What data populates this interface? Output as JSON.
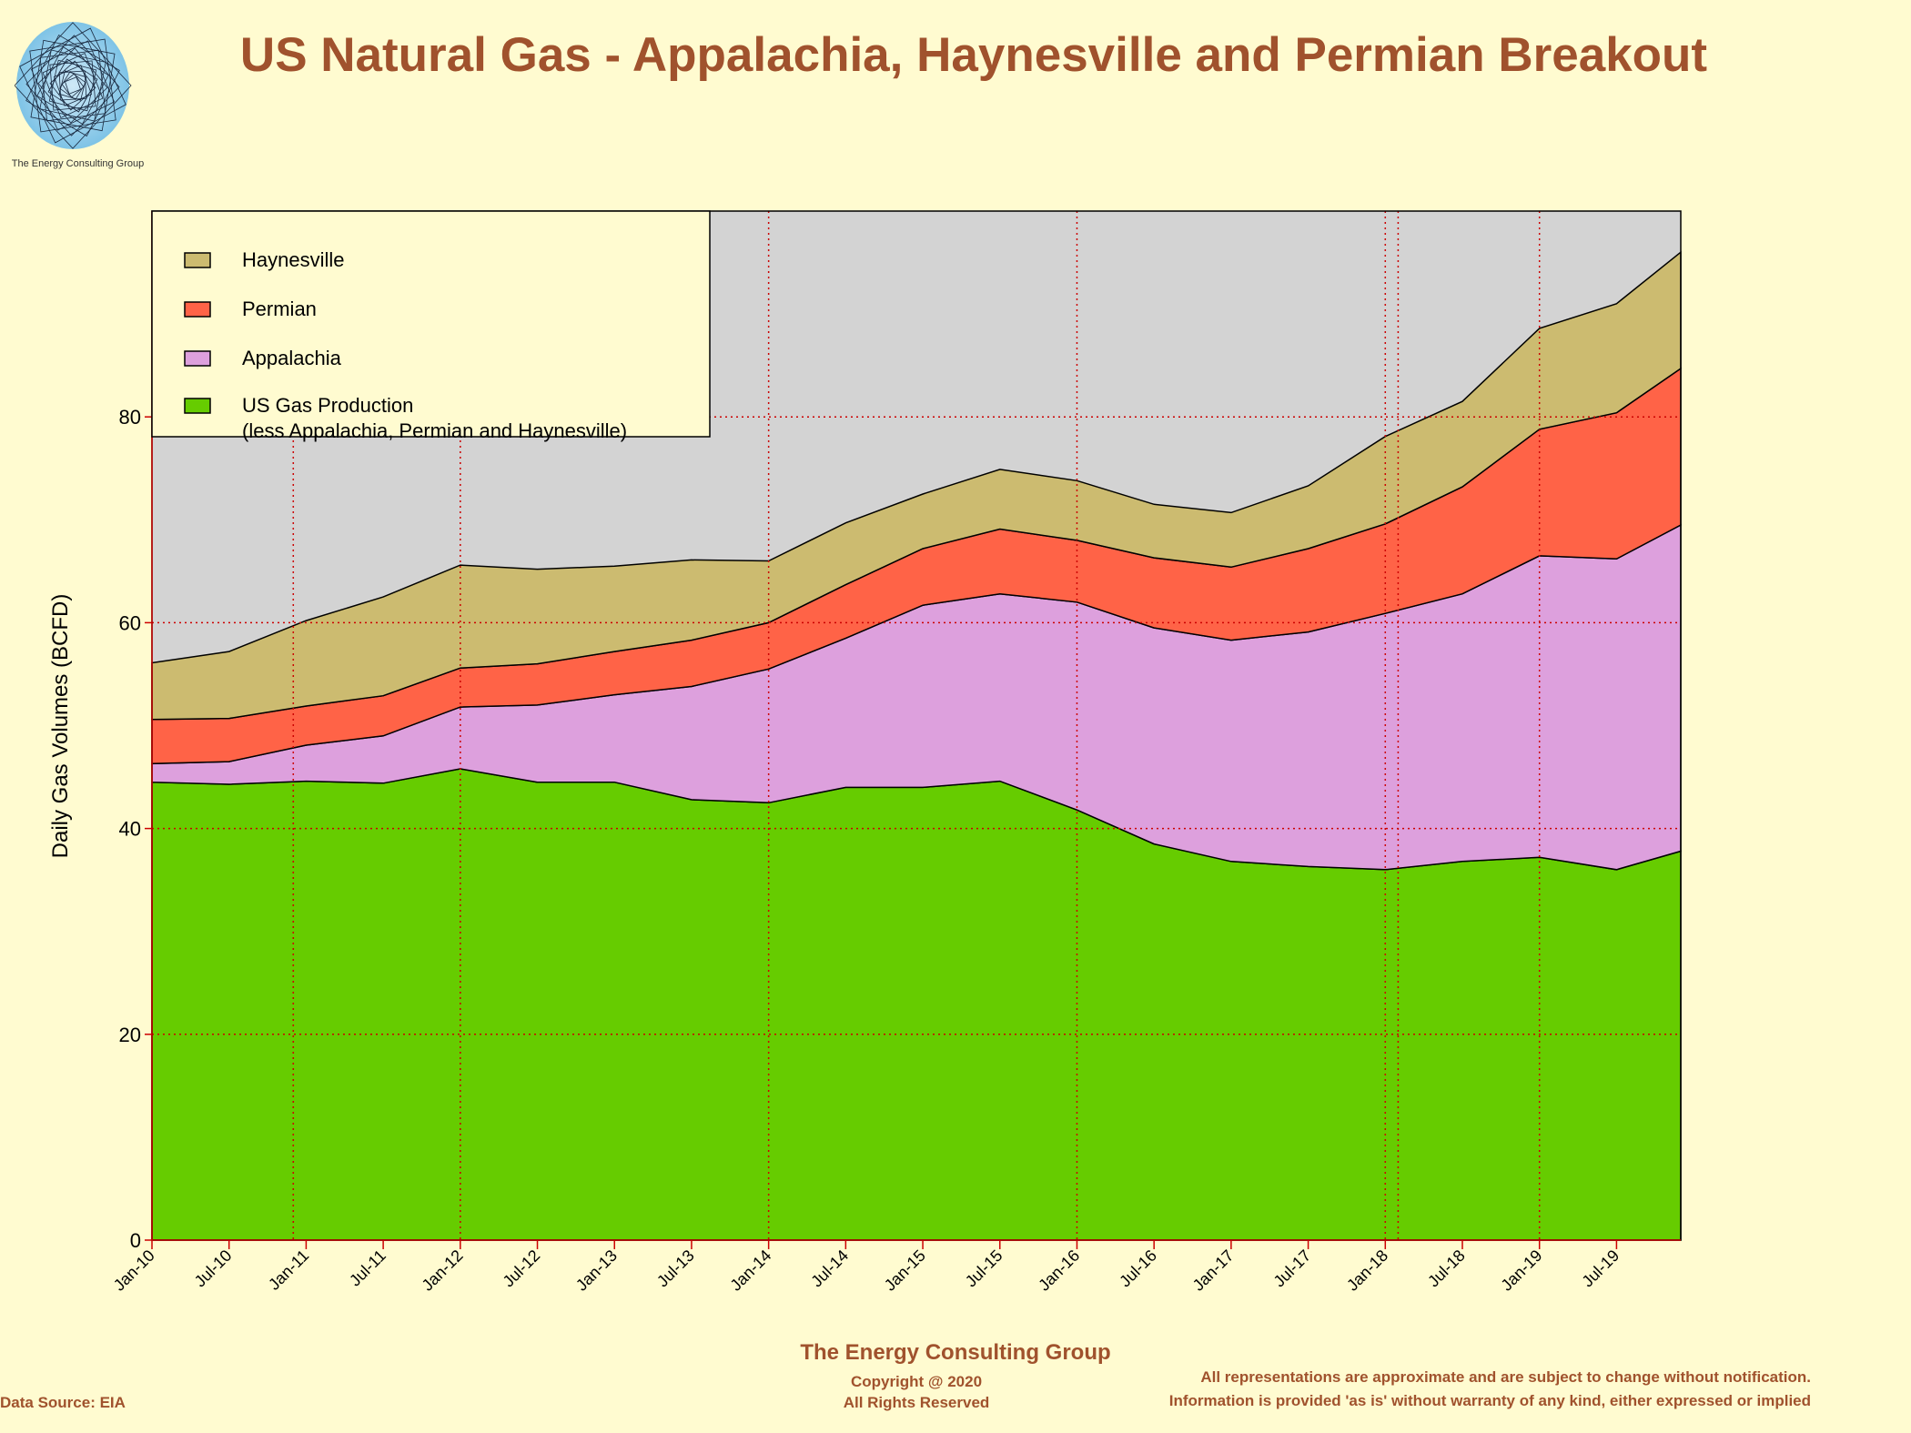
{
  "title": "US Natural Gas - Appalachia, Haynesville and Permian Breakout",
  "logo_text": "The Energy Consulting Group",
  "footer": {
    "org": "The Energy Consulting Group",
    "copyright": "Copyright @ 2020",
    "rights": "All Rights Reserved",
    "source": "Data Source: EIA",
    "disclaimer1": "All representations are approximate and are subject to change without notification.",
    "disclaimer2": "Information is provided 'as is' without warranty of any kind, either expressed or implied"
  },
  "colors": {
    "background": "#FFFBD0",
    "plot_background": "#D3D3D3",
    "grid": "#CC0000",
    "US Gas Production": "#66CC00",
    "Appalachia": "#DDA0DD",
    "Permian": "#FF6347",
    "Haynesville": "#CCBB70",
    "accent": "#A0522D"
  },
  "chart_data": {
    "type": "area",
    "stacked": true,
    "ylabel": "Daily Gas Volumes (BCFD)",
    "xlabel": "",
    "ylim": [
      0,
      100
    ],
    "yticks": [
      0,
      20,
      40,
      60,
      80
    ],
    "x_start": "Jan-10",
    "x_end": "Dec-19",
    "x_tick_labels": [
      "Jan-10",
      "Jul-10",
      "Jan-11",
      "Jul-11",
      "Jan-12",
      "Jul-12",
      "Jan-13",
      "Jul-13",
      "Jan-14",
      "Jul-14",
      "Jan-15",
      "Jul-15",
      "Jan-16",
      "Jul-16",
      "Jan-17",
      "Jul-17",
      "Jan-18",
      "Jul-18",
      "Jan-19",
      "Jul-19"
    ],
    "vertical_grid_at": [
      "Dec-10",
      "Jan-12",
      "Jan-14",
      "Jan-16",
      "Jan-18",
      "Feb-18",
      "Jan-19",
      "Jan-20"
    ],
    "grid": true,
    "legend_position": "top-left",
    "x": [
      "Jan-10",
      "Jul-10",
      "Jan-11",
      "Jul-11",
      "Jan-12",
      "Jul-12",
      "Jan-13",
      "Jul-13",
      "Jan-14",
      "Jul-14",
      "Jan-15",
      "Jul-15",
      "Jan-16",
      "Jul-16",
      "Jan-17",
      "Jul-17",
      "Jan-18",
      "Jul-18",
      "Jan-19",
      "Jul-19",
      "Dec-19"
    ],
    "series": [
      {
        "name": "US Gas Production",
        "legend_label": "US Gas Production",
        "legend_label2": "(less Appalachia, Permian and Haynesville)",
        "values": [
          44.5,
          44.3,
          44.6,
          44.4,
          45.8,
          44.5,
          44.5,
          42.8,
          42.5,
          44.0,
          44.0,
          44.6,
          41.8,
          38.5,
          36.8,
          36.3,
          36.0,
          36.8,
          37.2,
          36.0,
          37.8
        ]
      },
      {
        "name": "Appalachia",
        "values": [
          1.8,
          2.2,
          3.5,
          4.6,
          6.0,
          7.5,
          8.5,
          11.0,
          13.0,
          14.5,
          17.7,
          18.2,
          20.2,
          21.0,
          21.5,
          22.8,
          24.9,
          26.0,
          29.3,
          30.2,
          31.7
        ]
      },
      {
        "name": "Permian",
        "values": [
          4.3,
          4.2,
          3.8,
          3.9,
          3.8,
          4.0,
          4.2,
          4.5,
          4.5,
          5.2,
          5.5,
          6.3,
          6.0,
          6.8,
          7.1,
          8.1,
          8.7,
          10.4,
          12.3,
          14.2,
          15.2
        ]
      },
      {
        "name": "Haynesville",
        "values": [
          5.5,
          6.5,
          8.3,
          9.6,
          10.0,
          9.2,
          8.3,
          7.8,
          6.0,
          6.0,
          5.3,
          5.8,
          5.8,
          5.2,
          5.3,
          6.1,
          8.5,
          8.3,
          9.8,
          10.6,
          11.3
        ]
      }
    ]
  }
}
